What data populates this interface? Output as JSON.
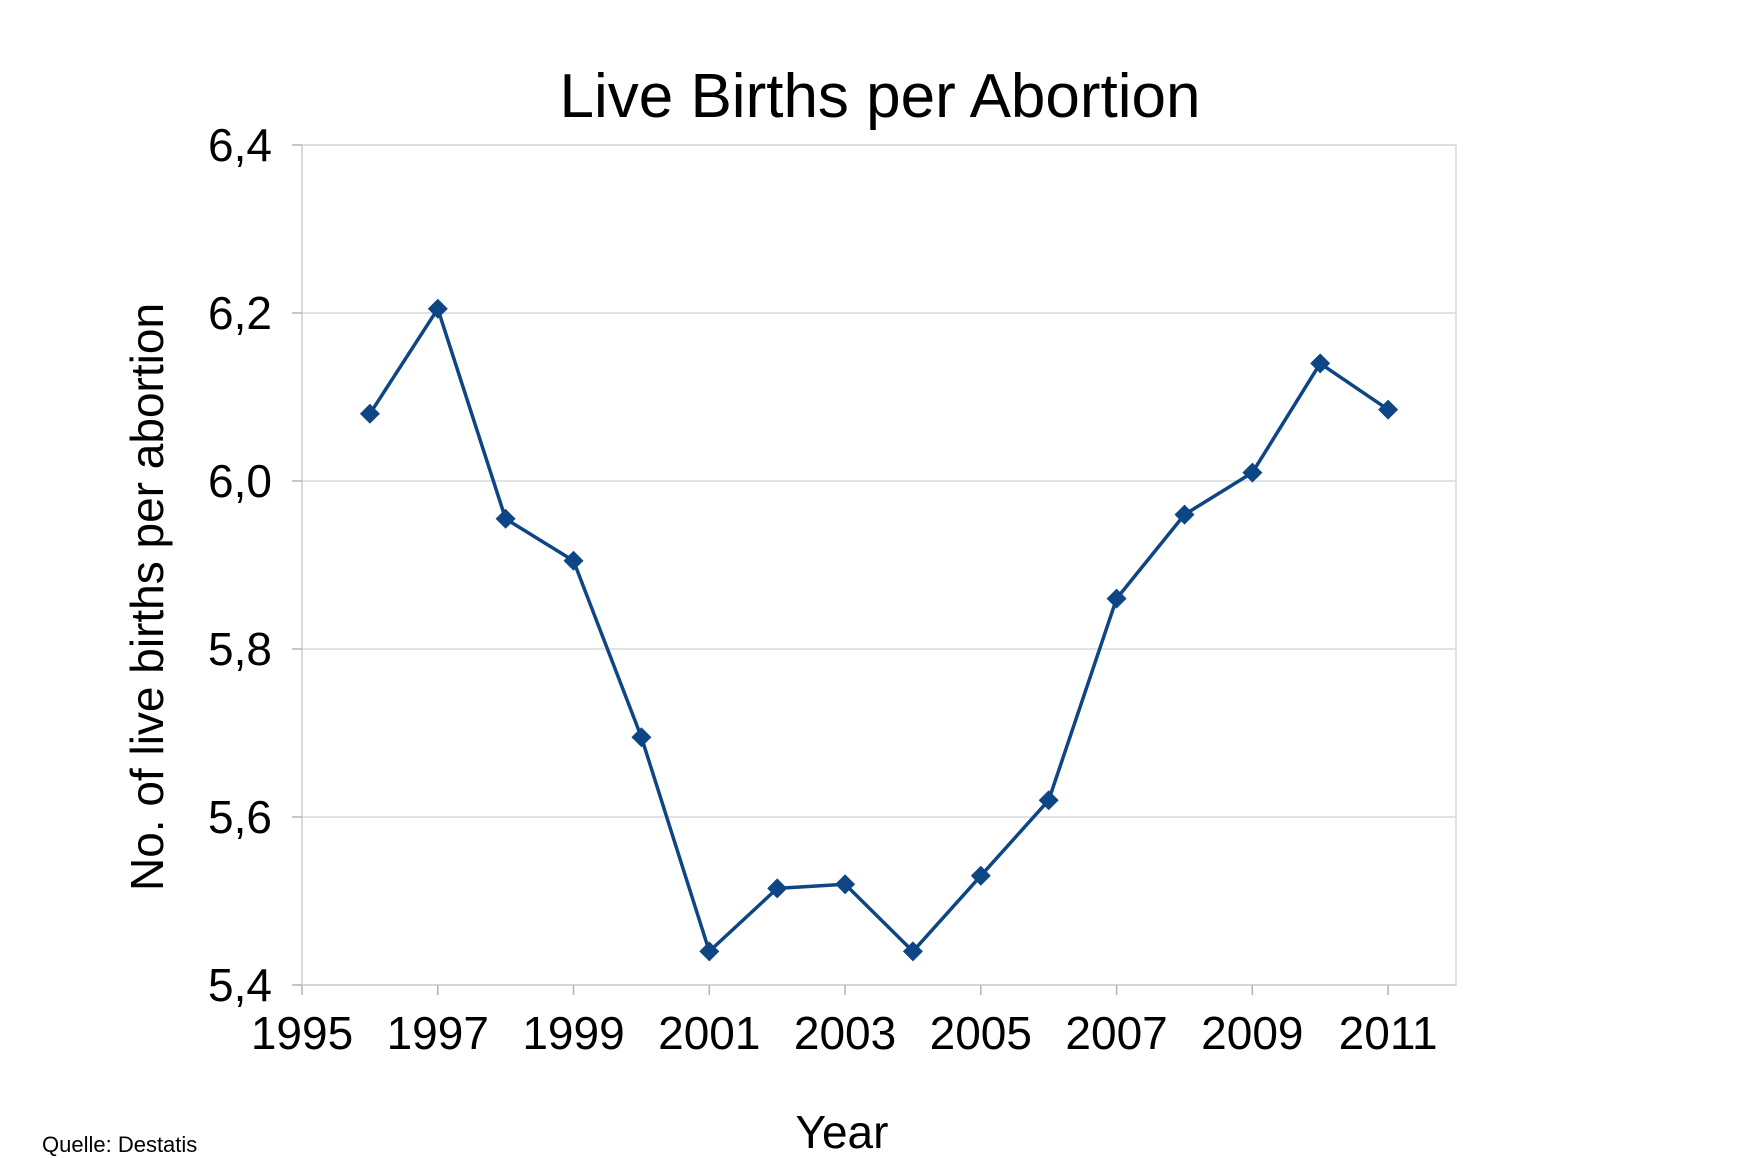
{
  "chart_data": {
    "type": "line",
    "title": "Live Births per Abortion",
    "xlabel": "Year",
    "ylabel": "No. of live births per abortion",
    "xlim": [
      1995,
      2012
    ],
    "ylim": [
      5.4,
      6.4
    ],
    "x_ticks": [
      "1995",
      "1997",
      "1999",
      "2001",
      "2003",
      "2005",
      "2007",
      "2009",
      "2011"
    ],
    "y_ticks": [
      "5,4",
      "5,6",
      "5,8",
      "6,0",
      "6,2",
      "6,4"
    ],
    "grid": "horizontal",
    "series": [
      {
        "x": [
          1996,
          1997,
          1998,
          1999,
          2000,
          2001,
          2002,
          2003,
          2004,
          2005,
          2006,
          2007,
          2008,
          2009,
          2010,
          2011
        ],
        "y": [
          6.08,
          6.205,
          5.955,
          5.905,
          5.695,
          5.44,
          5.515,
          5.52,
          5.44,
          5.53,
          5.62,
          5.86,
          5.96,
          6.01,
          6.14,
          6.085
        ]
      }
    ],
    "annotations": [
      "Quelle: Destatis"
    ]
  },
  "colors": {
    "series": "#0e4584",
    "grid": "#d9d9d9",
    "axis": "#b3b3b3"
  }
}
